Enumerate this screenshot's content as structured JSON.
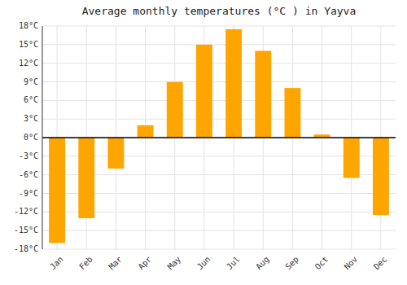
{
  "chart_data": {
    "type": "bar",
    "title": "Average monthly temperatures (°C ) in Yayva",
    "categories": [
      "Jan",
      "Feb",
      "Mar",
      "Apr",
      "May",
      "Jun",
      "Jul",
      "Aug",
      "Sep",
      "Oct",
      "Nov",
      "Dec"
    ],
    "values": [
      -17,
      -13,
      -5,
      2,
      9,
      15,
      17.5,
      14,
      8,
      0.5,
      -6.5,
      -12.5
    ],
    "color": "#FFA500",
    "ylim": [
      -18,
      18
    ],
    "yticks": [
      {
        "value": -18,
        "label": "-18°C"
      },
      {
        "value": -15,
        "label": "-15°C"
      },
      {
        "value": -12,
        "label": "-12°C"
      },
      {
        "value": -9,
        "label": "-9°C"
      },
      {
        "value": -6,
        "label": "-6°C"
      },
      {
        "value": -3,
        "label": "-3°C"
      },
      {
        "value": 0,
        "label": "0°C"
      },
      {
        "value": 3,
        "label": "3°C"
      },
      {
        "value": 6,
        "label": "6°C"
      },
      {
        "value": 9,
        "label": "9°C"
      },
      {
        "value": 12,
        "label": "12°C"
      },
      {
        "value": 15,
        "label": "15°C"
      },
      {
        "value": 18,
        "label": "18°C"
      }
    ],
    "grid": true
  }
}
